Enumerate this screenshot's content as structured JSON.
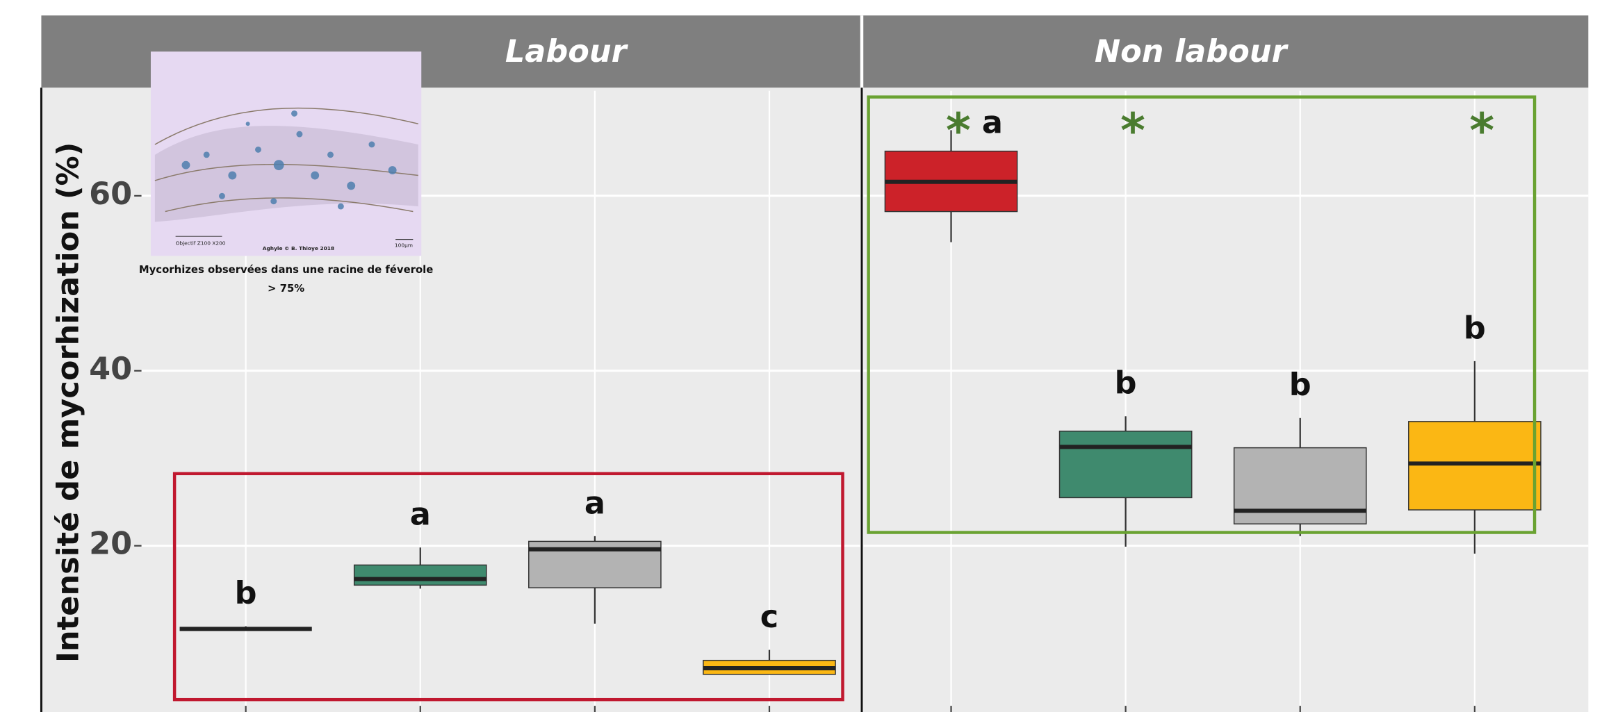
{
  "chart_data": {
    "type": "box",
    "y_label": "Intensité de mycorhization (%)",
    "ylim": [
      1,
      72
    ],
    "yticks": [
      20,
      40,
      60
    ],
    "grid": true,
    "categories": [
      null,
      null,
      null,
      null
    ],
    "colors": [
      "#cc2229",
      "#3f8a6e",
      "#b3b3b3",
      "#fbb714"
    ],
    "panels": [
      {
        "title": "Labour",
        "highlight_color": "#c0182f",
        "boxes": [
          {
            "min": 10.3,
            "q1": 10.5,
            "median": 10.5,
            "q3": 10.5,
            "max": 10.8,
            "label": "b"
          },
          {
            "min": 15.1,
            "q1": 15.5,
            "median": 16.2,
            "q3": 17.8,
            "max": 19.8,
            "label": "a"
          },
          {
            "min": 11.1,
            "q1": 15.2,
            "median": 19.6,
            "q3": 20.5,
            "max": 21.1,
            "label": "a"
          },
          {
            "min": 5.3,
            "q1": 5.3,
            "median": 6.0,
            "q3": 6.9,
            "max": 8.1,
            "label": "c"
          }
        ],
        "stars": [
          null,
          null,
          null,
          null
        ]
      },
      {
        "title": "Non labour",
        "highlight_color": "#6aa232",
        "boxes": [
          {
            "min": 54.7,
            "q1": 58.2,
            "median": 61.6,
            "q3": 65.1,
            "max": 67.5,
            "label": "a"
          },
          {
            "min": 19.9,
            "q1": 25.5,
            "median": 31.3,
            "q3": 33.1,
            "max": 34.8,
            "label": "b"
          },
          {
            "min": 21.1,
            "q1": 22.5,
            "median": 24.0,
            "q3": 31.2,
            "max": 34.6,
            "label": "b"
          },
          {
            "min": 19.1,
            "q1": 24.1,
            "median": 29.4,
            "q3": 34.2,
            "max": 41.1,
            "label": "b"
          }
        ],
        "stars": [
          "*",
          "*",
          null,
          "*"
        ]
      }
    ],
    "inset": {
      "caption": "Mycorhizes observées dans une racine de féverole",
      "sub_caption": "> 75%",
      "objective": "Objectif Z100 X200",
      "credit": "Aghyle © B. Thioye 2018",
      "scale": "100µm"
    }
  }
}
